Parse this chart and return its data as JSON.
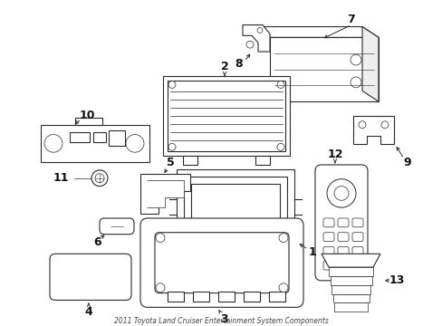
{
  "bg_color": "#ffffff",
  "line_color": "#2a2a2a",
  "text_color": "#111111",
  "figsize": [
    4.89,
    3.6
  ],
  "dpi": 100
}
